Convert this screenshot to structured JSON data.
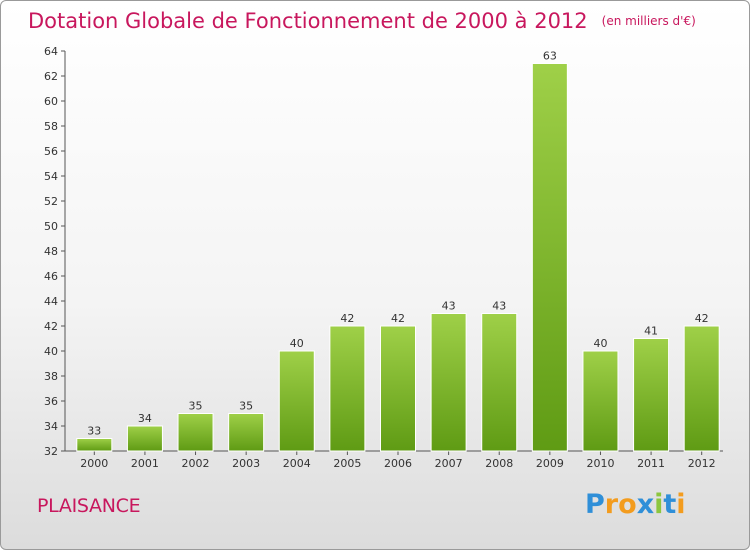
{
  "title": "Dotation Globale de Fonctionnement de 2000 à 2012",
  "unit_note": "(en milliers d'€)",
  "place": "PLAISANCE",
  "logo": {
    "letters": [
      "P",
      "r",
      "o",
      "x",
      "i",
      "t",
      "i"
    ],
    "colors": [
      "#2f8fd8",
      "#f39c1e",
      "#f39c1e",
      "#2f8fd8",
      "#8cc63e",
      "#2f8fd8",
      "#f39c1e"
    ]
  },
  "colors": {
    "bar_top": "#9fd048",
    "bar_bottom": "#5f9b14",
    "title": "#c8175d"
  },
  "chart_data": {
    "type": "bar",
    "title": "Dotation Globale de Fonctionnement de 2000 à 2012",
    "subtitle": "(en milliers d'€)",
    "xlabel": "",
    "ylabel": "",
    "categories": [
      "2000",
      "2001",
      "2002",
      "2003",
      "2004",
      "2005",
      "2006",
      "2007",
      "2008",
      "2009",
      "2010",
      "2011",
      "2012"
    ],
    "values": [
      33,
      34,
      35,
      35,
      40,
      42,
      42,
      43,
      43,
      63,
      40,
      41,
      42
    ],
    "ylim": [
      32,
      64
    ],
    "ytick_step": 2,
    "grid": false,
    "legend": "none"
  }
}
